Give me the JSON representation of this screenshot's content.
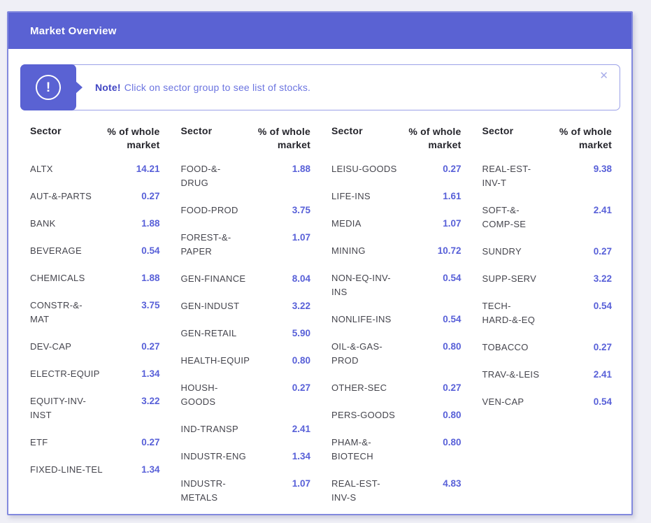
{
  "header": {
    "title": "Market Overview"
  },
  "note": {
    "bold": "Note!",
    "text": "Click on sector group to see list of stocks.",
    "alert_icon": "!",
    "close_icon": "✕"
  },
  "table": {
    "header": {
      "sector": "Sector",
      "value": "% of whole market"
    },
    "columns": [
      {
        "rows": [
          {
            "sector": "ALTX",
            "value": "14.21"
          },
          {
            "sector": "AUT-&-PARTS",
            "value": "0.27"
          },
          {
            "sector": "BANK",
            "value": "1.88"
          },
          {
            "sector": "BEVERAGE",
            "value": "0.54"
          },
          {
            "sector": "CHEMICALS",
            "value": "1.88"
          },
          {
            "sector": "CONSTR-&-\nMAT",
            "value": "3.75"
          },
          {
            "sector": "DEV-CAP",
            "value": "0.27"
          },
          {
            "sector": "ELECTR-EQUIP",
            "value": "1.34"
          },
          {
            "sector": "EQUITY-INV-\nINST",
            "value": "3.22"
          },
          {
            "sector": "ETF",
            "value": "0.27"
          },
          {
            "sector": "FIXED-LINE-TEL",
            "value": "1.34"
          }
        ]
      },
      {
        "rows": [
          {
            "sector": "FOOD-&-\nDRUG",
            "value": "1.88"
          },
          {
            "sector": "FOOD-PROD",
            "value": "3.75"
          },
          {
            "sector": "FOREST-&-\nPAPER",
            "value": "1.07"
          },
          {
            "sector": "GEN-FINANCE",
            "value": "8.04"
          },
          {
            "sector": "GEN-INDUST",
            "value": "3.22"
          },
          {
            "sector": "GEN-RETAIL",
            "value": "5.90"
          },
          {
            "sector": "HEALTH-EQUIP",
            "value": "0.80"
          },
          {
            "sector": "HOUSH-\nGOODS",
            "value": "0.27"
          },
          {
            "sector": "IND-TRANSP",
            "value": "2.41"
          },
          {
            "sector": "INDUSTR-ENG",
            "value": "1.34"
          },
          {
            "sector": "INDUSTR-\nMETALS",
            "value": "1.07"
          }
        ]
      },
      {
        "rows": [
          {
            "sector": "LEISU-GOODS",
            "value": "0.27"
          },
          {
            "sector": "LIFE-INS",
            "value": "1.61"
          },
          {
            "sector": "MEDIA",
            "value": "1.07"
          },
          {
            "sector": "MINING",
            "value": "10.72"
          },
          {
            "sector": "NON-EQ-INV-\nINS",
            "value": "0.54"
          },
          {
            "sector": "NONLIFE-INS",
            "value": "0.54"
          },
          {
            "sector": "OIL-&-GAS-\nPROD",
            "value": "0.80"
          },
          {
            "sector": "OTHER-SEC",
            "value": "0.27"
          },
          {
            "sector": "PERS-GOODS",
            "value": "0.80"
          },
          {
            "sector": "PHAM-&-\nBIOTECH",
            "value": "0.80"
          },
          {
            "sector": "REAL-EST-\nINV-S",
            "value": "4.83"
          }
        ]
      },
      {
        "rows": [
          {
            "sector": "REAL-EST-\nINV-T",
            "value": "9.38"
          },
          {
            "sector": "SOFT-&-\nCOMP-SE",
            "value": "2.41"
          },
          {
            "sector": "SUNDRY",
            "value": "0.27"
          },
          {
            "sector": "SUPP-SERV",
            "value": "3.22"
          },
          {
            "sector": "TECH-\nHARD-&-EQ",
            "value": "0.54"
          },
          {
            "sector": "TOBACCO",
            "value": "0.27"
          },
          {
            "sector": "TRAV-&-LEIS",
            "value": "2.41"
          },
          {
            "sector": "VEN-CAP",
            "value": "0.54"
          }
        ]
      }
    ]
  },
  "colors": {
    "accent": "#5A62D3",
    "value_text": "#5860D8",
    "page_bg": "#EFEFF6",
    "card_border": "#8289DE",
    "note_border": "#9BA1E8"
  }
}
